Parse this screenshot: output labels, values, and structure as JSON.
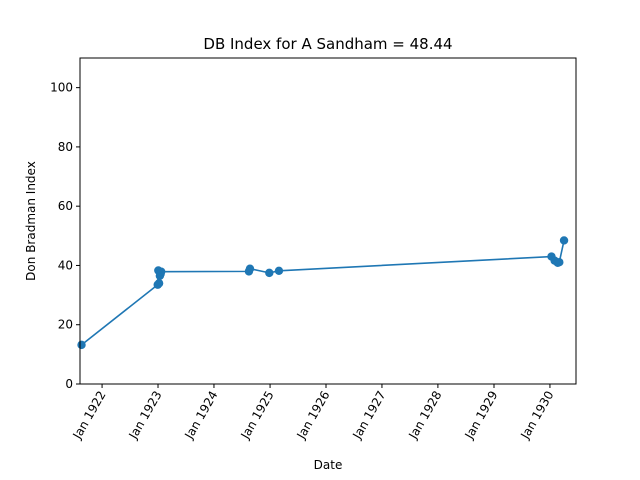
{
  "chart_data": {
    "type": "line",
    "title": "DB Index for A Sandham = 48.44",
    "xlabel": "Date",
    "ylabel": "Don Bradman Index",
    "ylim": [
      0,
      110
    ],
    "xlim": [
      "1921-08-10",
      "1930-06-20"
    ],
    "grid": false,
    "x_ticks": [
      {
        "date": "1922-01-01",
        "label": "Jan 1922"
      },
      {
        "date": "1923-01-01",
        "label": "Jan 1923"
      },
      {
        "date": "1924-01-01",
        "label": "Jan 1924"
      },
      {
        "date": "1925-01-01",
        "label": "Jan 1925"
      },
      {
        "date": "1926-01-01",
        "label": "Jan 1926"
      },
      {
        "date": "1927-01-01",
        "label": "Jan 1927"
      },
      {
        "date": "1928-01-01",
        "label": "Jan 1928"
      },
      {
        "date": "1929-01-01",
        "label": "Jan 1929"
      },
      {
        "date": "1930-01-01",
        "label": "Jan 1930"
      }
    ],
    "y_ticks": [
      0,
      20,
      40,
      60,
      80,
      100
    ],
    "color": "#1f77b4",
    "series": [
      {
        "points": [
          {
            "x": "1921-08-20",
            "y": 13.2
          },
          {
            "x": "1922-12-30",
            "y": 33.5
          },
          {
            "x": "1923-01-03",
            "y": 38.3
          },
          {
            "x": "1923-01-08",
            "y": 34.0
          },
          {
            "x": "1923-01-13",
            "y": 36.5
          },
          {
            "x": "1923-01-18",
            "y": 37.1
          },
          {
            "x": "1923-01-22",
            "y": 37.9
          },
          {
            "x": "1924-08-16",
            "y": 38.0
          },
          {
            "x": "1924-08-23",
            "y": 38.9
          },
          {
            "x": "1924-12-27",
            "y": 37.5
          },
          {
            "x": "1925-02-28",
            "y": 38.2
          },
          {
            "x": "1930-01-11",
            "y": 43.0
          },
          {
            "x": "1930-02-01",
            "y": 41.6
          },
          {
            "x": "1930-02-21",
            "y": 40.9
          },
          {
            "x": "1930-03-03",
            "y": 41.1
          },
          {
            "x": "1930-04-03",
            "y": 48.44
          }
        ]
      }
    ]
  }
}
